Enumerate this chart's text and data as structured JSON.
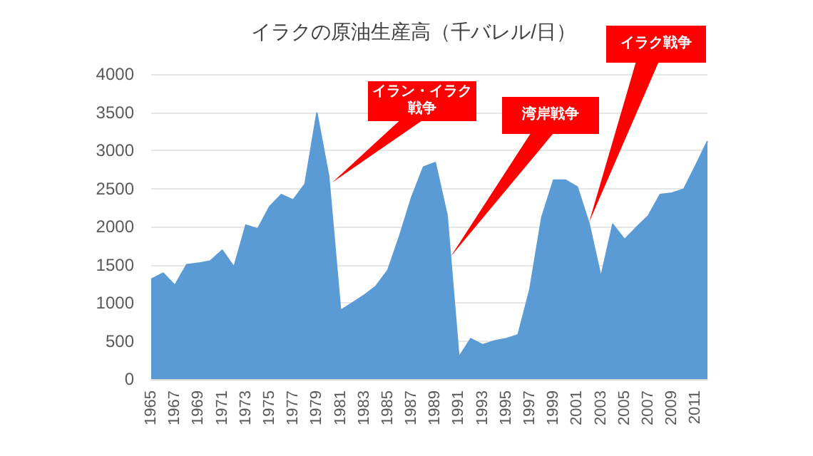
{
  "chart_data": {
    "type": "area",
    "title": "イラクの原油生産高（千バレル/日）",
    "categories": [
      "1965",
      null,
      "1967",
      null,
      "1969",
      null,
      "1971",
      null,
      "1973",
      null,
      "1975",
      null,
      "1977",
      null,
      "1979",
      null,
      "1981",
      null,
      "1983",
      null,
      "1985",
      null,
      "1987",
      null,
      "1989",
      null,
      "1991",
      null,
      "1993",
      null,
      "1995",
      null,
      "1997",
      null,
      "1999",
      null,
      "2001",
      null,
      "2003",
      null,
      "2005",
      null,
      "2007",
      null,
      "2009",
      null,
      "2011",
      null
    ],
    "series": [
      {
        "color": "#5b9bd5",
        "values": [
          1310,
          1390,
          1230,
          1500,
          1520,
          1550,
          1690,
          1470,
          2020,
          1970,
          2260,
          2420,
          2350,
          2560,
          3490,
          2660,
          900,
          1000,
          1100,
          1220,
          1430,
          1880,
          2380,
          2780,
          2840,
          2150,
          290,
          530,
          450,
          500,
          530,
          580,
          1180,
          2120,
          2610,
          2610,
          2520,
          2040,
          1340,
          2030,
          1830,
          1990,
          2140,
          2420,
          2440,
          2490,
          2800,
          3120
        ]
      }
    ],
    "ylim": [
      0,
      4000
    ],
    "yticks": [
      0,
      500,
      1000,
      1500,
      2000,
      2500,
      3000,
      3500,
      4000
    ],
    "grid": "y",
    "annotations": [
      "イラン・イラク戦争",
      "湾岸戦争",
      "イラク戦争"
    ]
  }
}
